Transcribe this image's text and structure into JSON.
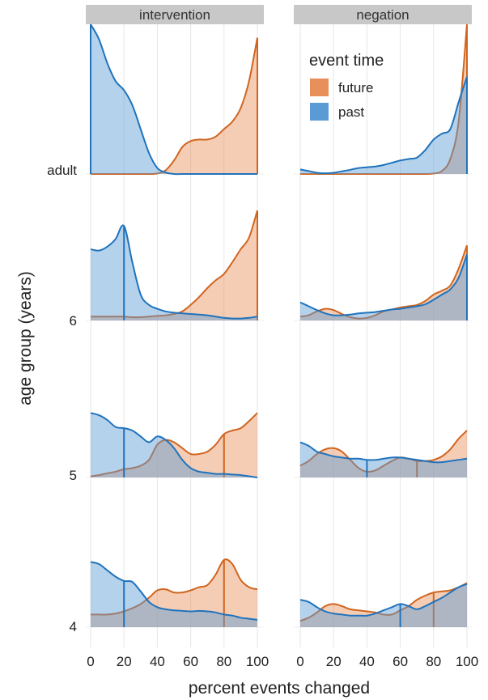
{
  "chart_data": {
    "type": "area",
    "subtype": "ridgeline density plot",
    "facets": [
      "intervention",
      "negation"
    ],
    "age_groups": [
      "adult",
      "6",
      "5",
      "4"
    ],
    "xlabel": "percent events changed",
    "ylabel": "age group (years)",
    "x_ticks": [
      0,
      20,
      40,
      60,
      80,
      100
    ],
    "xlim": [
      0,
      100
    ],
    "grid": "vertical gridlines at each x tick",
    "legend": {
      "title": "event time",
      "position": "top-right",
      "entries": [
        {
          "name": "future",
          "color": "#e8905c"
        },
        {
          "name": "past",
          "color": "#5b9bd5"
        }
      ]
    },
    "colors": {
      "future_fill": "#e8905c",
      "future_line": "#d0651f",
      "past_fill": "#5b9bd5",
      "past_line": "#1f73bd",
      "facet_strip": "#c8c8c8",
      "grid": "#e6e6e6"
    },
    "x_grid": [
      0,
      5,
      10,
      15,
      20,
      25,
      30,
      35,
      40,
      45,
      50,
      55,
      60,
      65,
      70,
      75,
      80,
      85,
      90,
      95,
      100
    ],
    "panels": [
      {
        "facet": "intervention",
        "age": "adult",
        "future": [
          0,
          0,
          0,
          0,
          0,
          0,
          0,
          0,
          0.3,
          2.5,
          9,
          18,
          22,
          23,
          23,
          25,
          30,
          35,
          44,
          62,
          91
        ],
        "past": [
          100,
          90,
          74,
          62,
          56,
          46,
          30,
          14,
          4,
          1,
          0,
          0,
          0,
          0,
          0,
          0,
          0,
          0,
          0,
          0,
          0
        ],
        "future_median": 100,
        "past_median": 0
      },
      {
        "facet": "negation",
        "age": "adult",
        "future": [
          0,
          0,
          0,
          0,
          0,
          0,
          0,
          0,
          0,
          0,
          0,
          0,
          0,
          0,
          0,
          0,
          0.3,
          2,
          10,
          35,
          100
        ],
        "past": [
          3,
          2,
          0.8,
          0.5,
          0.8,
          1.8,
          2.8,
          4,
          4.5,
          5,
          6,
          7.5,
          9,
          10,
          11,
          16,
          23,
          27,
          30,
          48,
          65
        ],
        "future_median": 100,
        "past_median": 100
      },
      {
        "facet": "intervention",
        "age": "6",
        "future": [
          3,
          3,
          3,
          3,
          3,
          2.5,
          2.5,
          3,
          3.5,
          4,
          5,
          7,
          12,
          18,
          25,
          31,
          36,
          45,
          55,
          64,
          85
        ],
        "past": [
          55,
          54,
          57,
          63,
          73,
          45,
          20,
          12,
          9,
          7,
          6,
          5.5,
          5,
          4.5,
          4,
          3,
          2,
          1.5,
          1.5,
          2,
          3
        ],
        "future_median": 100,
        "past_median": 20
      },
      {
        "facet": "negation",
        "age": "6",
        "future": [
          3,
          4,
          7,
          9,
          8,
          5,
          2.5,
          1.5,
          2,
          4,
          7,
          8.5,
          10,
          11,
          12,
          15,
          20,
          23,
          27,
          40,
          58
        ],
        "past": [
          14,
          11,
          8,
          5.5,
          4,
          4,
          4.5,
          5.5,
          6,
          6.5,
          7.5,
          8.5,
          9,
          10,
          11,
          12.5,
          16,
          20,
          24,
          33,
          51
        ],
        "future_median": 100,
        "past_median": 100
      },
      {
        "facet": "intervention",
        "age": "5",
        "future": [
          1,
          2,
          3.5,
          5,
          7,
          8,
          10,
          15,
          28,
          32,
          30,
          25,
          20,
          20,
          22,
          28,
          37,
          40,
          42,
          48,
          55
        ],
        "past": [
          55,
          53,
          49,
          43,
          42,
          40,
          35,
          30,
          35,
          32,
          25,
          15,
          8,
          5,
          4,
          3,
          3,
          2.5,
          2,
          1,
          0
        ],
        "future_median": 80,
        "past_median": 20
      },
      {
        "facet": "negation",
        "age": "5",
        "future": [
          10,
          14,
          20,
          24,
          25,
          22,
          15,
          8,
          5,
          6,
          10,
          14,
          17,
          16,
          14,
          14,
          15,
          18,
          24,
          33,
          40
        ],
        "past": [
          30,
          27,
          22,
          20,
          18,
          17,
          16,
          16,
          15,
          15,
          16,
          17,
          17,
          16,
          15,
          14,
          13,
          13,
          14,
          15,
          16
        ],
        "future_median": 70,
        "past_median": 40
      },
      {
        "facet": "intervention",
        "age": "4",
        "future": [
          12,
          12,
          12,
          13,
          15,
          18,
          22,
          28,
          35,
          36,
          33,
          33,
          35,
          38,
          40,
          50,
          64,
          60,
          45,
          38,
          36
        ],
        "past": [
          62,
          60,
          54,
          48,
          44,
          43,
          34,
          24,
          19,
          17,
          16,
          15.5,
          15,
          15.5,
          15,
          14,
          12,
          11,
          9,
          8,
          7
        ],
        "future_median": 80,
        "past_median": 20
      },
      {
        "facet": "negation",
        "age": "4",
        "future": [
          6,
          9,
          14,
          20,
          22,
          20,
          17,
          16,
          15,
          14,
          12,
          12,
          16,
          20,
          26,
          30,
          33,
          34,
          35,
          38,
          42
        ],
        "past": [
          26,
          24,
          19,
          15,
          13,
          12,
          11,
          11,
          11,
          13,
          16,
          19,
          22,
          20,
          17,
          20,
          24,
          28,
          33,
          38,
          41
        ],
        "future_median": 80,
        "past_median": 60
      }
    ]
  }
}
